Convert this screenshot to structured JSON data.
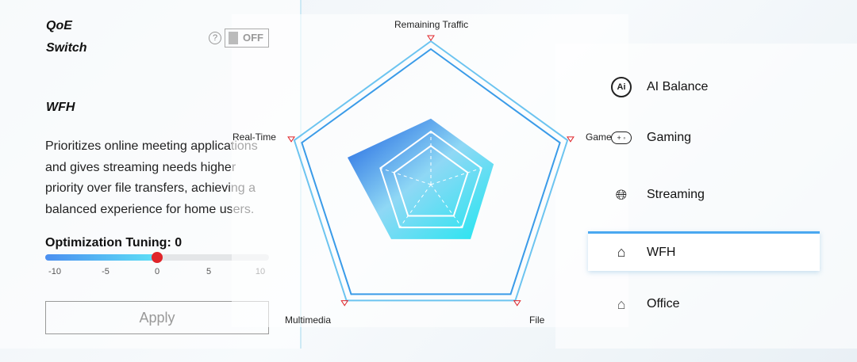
{
  "qoe": {
    "title_line1": "QoE",
    "title_line2": "Switch",
    "help_icon": "?",
    "toggle_label": "OFF"
  },
  "mode_detail": {
    "title": "WFH",
    "description": "Prioritizes online meeting applications and gives streaming needs higher priority over file transfers, achieving a balanced experience for home users."
  },
  "tuning": {
    "label": "Optimization Tuning: 0",
    "value": 0,
    "min": -10,
    "max": 10,
    "ticks": [
      "-10",
      "-5",
      "0",
      "5",
      "10"
    ]
  },
  "apply_label": "Apply",
  "chart_data": {
    "type": "radar",
    "axes": [
      "Remaining Traffic",
      "Game",
      "File",
      "Multimedia",
      "Real-Time"
    ],
    "values": [
      0.46,
      0.46,
      0.47,
      0.47,
      0.61
    ],
    "range": [
      0,
      1
    ]
  },
  "modes": [
    {
      "label": "AI Balance",
      "icon": "ai-icon"
    },
    {
      "label": "Gaming",
      "icon": "gamepad-icon"
    },
    {
      "label": "Streaming",
      "icon": "globe-icon"
    },
    {
      "label": "WFH",
      "icon": "home-study-icon",
      "active": true
    },
    {
      "label": "Office",
      "icon": "home-office-icon"
    }
  ],
  "colors": {
    "accent": "#4aa8f0",
    "thumb": "#e0252a"
  }
}
